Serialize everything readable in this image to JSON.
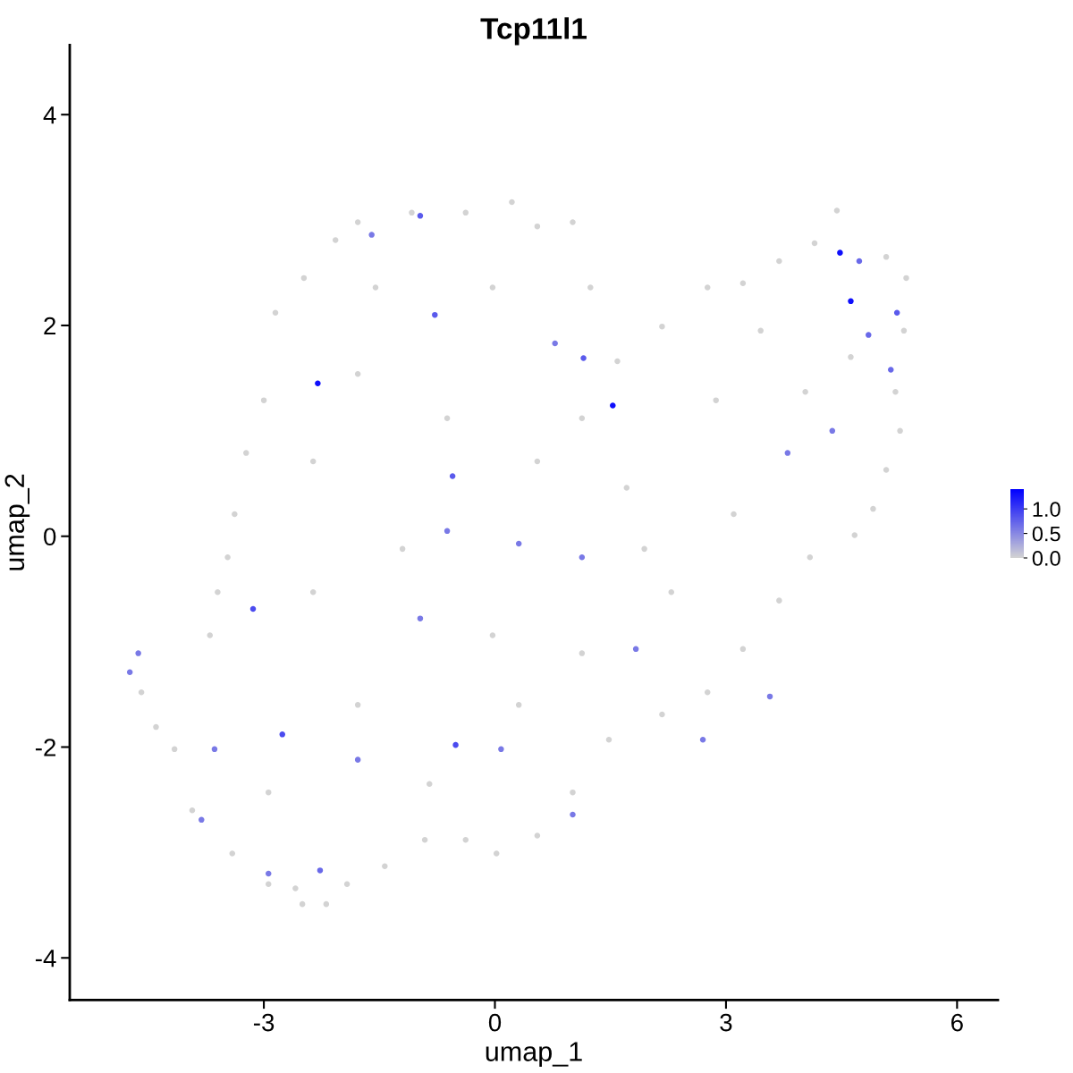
{
  "chart_data": {
    "type": "scatter",
    "title": "Tcp11l1",
    "xlabel": "umap_1",
    "ylabel": "umap_2",
    "x": [
      -4.4,
      -4.59,
      -4.16,
      -3.93,
      -3.41,
      -2.94,
      -2.59,
      -2.5,
      -2.19,
      -1.92,
      -1.43,
      -0.91,
      -0.38,
      0.02,
      0.55,
      1.01,
      1.48,
      2.17,
      2.76,
      3.22,
      3.69,
      4.09,
      4.67,
      4.91,
      5.08,
      5.26,
      5.2,
      5.31,
      5.34,
      5.08,
      4.44,
      4.15,
      3.69,
      3.22,
      2.76,
      2.17,
      1.59,
      1.24,
      1.01,
      0.55,
      0.22,
      -0.38,
      -1.08,
      -1.78,
      -2.07,
      -2.48,
      -2.85,
      -3.0,
      -3.23,
      -3.38,
      -3.47,
      -3.6,
      -3.7,
      -1.78,
      -0.62,
      0.55,
      1.71,
      2.87,
      4.03,
      3.45,
      -1.2,
      -2.36,
      -0.03,
      1.13,
      2.29,
      3.1,
      -1.78,
      -2.94,
      -0.85,
      0.31,
      -1.55,
      -0.03,
      1.13,
      -2.36,
      1.94,
      4.62,
      -2.3,
      1.53,
      4.48,
      4.62,
      -2.76,
      -3.14,
      -0.51,
      -0.97,
      1.15,
      -0.55,
      -0.78,
      5.22,
      5.14,
      -4.74,
      -4.63,
      -2.94,
      -2.27,
      -3.81,
      -1.78,
      0.31,
      -0.62,
      1.83,
      3.57,
      3.8,
      2.7,
      1.01,
      0.78,
      -1.6,
      4.73,
      4.85,
      4.38,
      -3.64,
      0.08,
      -0.97,
      1.13
    ],
    "values": [
      -1.81,
      -1.48,
      -2.02,
      -2.6,
      -3.01,
      -3.3,
      -3.34,
      -3.49,
      -3.49,
      -3.3,
      -3.13,
      -2.88,
      -2.88,
      -3.01,
      -2.84,
      -2.43,
      -1.93,
      -1.69,
      -1.48,
      -1.07,
      -0.61,
      -0.2,
      0.01,
      0.26,
      0.63,
      1.0,
      1.37,
      1.95,
      2.45,
      2.65,
      3.09,
      2.78,
      2.61,
      2.4,
      2.36,
      1.99,
      1.66,
      2.36,
      2.98,
      2.94,
      3.17,
      3.07,
      3.07,
      2.98,
      2.81,
      2.45,
      2.12,
      1.29,
      0.79,
      0.21,
      -0.2,
      -0.53,
      -0.94,
      1.54,
      1.12,
      0.71,
      0.46,
      1.29,
      1.37,
      1.95,
      -0.12,
      -0.53,
      -0.94,
      -1.11,
      -0.53,
      0.21,
      -1.6,
      -2.43,
      -2.35,
      -1.6,
      2.36,
      2.36,
      1.12,
      0.71,
      -0.12,
      1.7,
      1.45,
      1.24,
      2.69,
      2.23,
      -1.88,
      -0.69,
      -1.98,
      3.04,
      1.69,
      0.57,
      2.1,
      2.12,
      1.58,
      -1.29,
      -1.11,
      -3.2,
      -3.17,
      -2.69,
      -2.12,
      -0.07,
      0.05,
      -1.07,
      -1.52,
      0.79,
      -1.93,
      -2.64,
      1.83,
      2.86,
      2.61,
      1.91,
      1.0,
      -2.02,
      -2.02,
      -0.78,
      -0.2
    ],
    "cvalues": [
      0,
      0,
      0,
      0,
      0,
      0,
      0,
      0,
      0,
      0,
      0,
      0,
      0,
      0,
      0,
      0,
      0,
      0,
      0,
      0,
      0,
      0,
      0,
      0,
      0,
      0,
      0,
      0,
      0,
      0,
      0,
      0,
      0,
      0,
      0,
      0,
      0,
      0,
      0,
      0,
      0,
      0,
      0,
      0,
      0,
      0,
      0,
      0,
      0,
      0,
      0,
      0,
      0,
      0,
      0,
      0,
      0,
      0,
      0,
      0,
      0,
      0,
      0,
      0,
      0,
      0,
      0,
      0,
      0,
      0,
      0,
      0,
      0,
      0,
      0,
      0,
      1.3,
      1.3,
      1.3,
      1.3,
      0.9,
      0.9,
      0.9,
      0.8,
      0.8,
      0.8,
      0.8,
      0.8,
      0.7,
      0.6,
      0.6,
      0.6,
      0.7,
      0.6,
      0.6,
      0.6,
      0.6,
      0.6,
      0.6,
      0.6,
      0.6,
      0.6,
      0.6,
      0.6,
      0.7,
      0.7,
      0.6,
      0.6,
      0.6,
      0.6,
      0.6
    ],
    "xlim": [
      -5.52,
      6.53
    ],
    "ylim": [
      -4.4,
      4.66
    ],
    "xticks": [
      -3,
      0,
      3,
      6
    ],
    "yticks": [
      -4,
      -2,
      0,
      2,
      4
    ],
    "clim": [
      0,
      1.4
    ],
    "cticks": [
      {
        "value": 0,
        "label": "0.0"
      },
      {
        "value": 0.5,
        "label": "0.5"
      },
      {
        "value": 1,
        "label": "1.0"
      }
    ],
    "marker": "circle",
    "grid": false
  }
}
